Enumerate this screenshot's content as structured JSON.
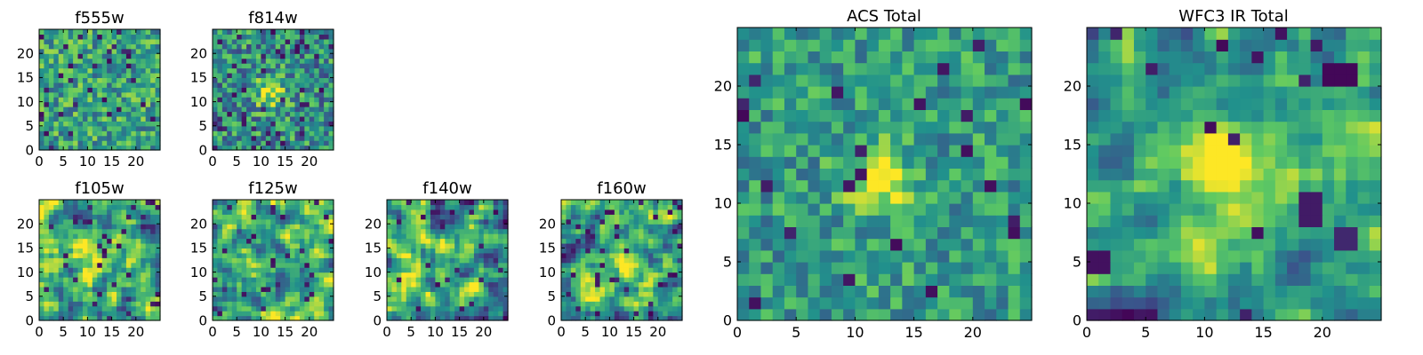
{
  "figure": {
    "background": "#ffffff",
    "frame_color": "#000000"
  },
  "colormap": {
    "name": "viridis",
    "stops": [
      "#440154",
      "#3b528b",
      "#21918c",
      "#5ec962",
      "#fde725"
    ]
  },
  "chart_data": [
    {
      "id": "f555w",
      "type": "heatmap",
      "title": "f555w",
      "grid_size": 25,
      "size_class": "small",
      "xticks": [
        0,
        5,
        10,
        15,
        20
      ],
      "yticks": [
        0,
        5,
        10,
        15,
        20
      ],
      "xlim": [
        0,
        25
      ],
      "ylim": [
        0,
        25
      ],
      "seed": 11,
      "noise": 0.55,
      "smooth": 0,
      "base": 0.58,
      "dark_frac": 0.06,
      "blob": null,
      "dark_patches": []
    },
    {
      "id": "f814w",
      "type": "heatmap",
      "title": "f814w",
      "grid_size": 25,
      "size_class": "small",
      "xticks": [
        0,
        5,
        10,
        15,
        20
      ],
      "yticks": [
        0,
        5,
        10,
        15,
        20
      ],
      "xlim": [
        0,
        25
      ],
      "ylim": [
        0,
        25
      ],
      "seed": 23,
      "noise": 0.6,
      "smooth": 0,
      "base": 0.5,
      "dark_frac": 0.07,
      "blob": {
        "cx": 12,
        "cy": 12,
        "sigma": 2.2,
        "amp": 0.45
      },
      "dark_patches": []
    },
    {
      "id": "f105w",
      "type": "heatmap",
      "title": "f105w",
      "grid_size": 25,
      "size_class": "small",
      "xticks": [
        0,
        5,
        10,
        15,
        20
      ],
      "yticks": [
        0,
        5,
        10,
        15,
        20
      ],
      "xlim": [
        0,
        25
      ],
      "ylim": [
        0,
        25
      ],
      "seed": 37,
      "noise": 0.9,
      "smooth": 1,
      "base": 0.6,
      "dark_frac": 0.05,
      "blob": {
        "cx": 12,
        "cy": 12,
        "sigma": 3.0,
        "amp": 0.3
      },
      "dark_patches": []
    },
    {
      "id": "f125w",
      "type": "heatmap",
      "title": "f125w",
      "grid_size": 25,
      "size_class": "small",
      "xticks": [
        0,
        5,
        10,
        15,
        20
      ],
      "yticks": [
        0,
        5,
        10,
        15,
        20
      ],
      "xlim": [
        0,
        25
      ],
      "ylim": [
        0,
        25
      ],
      "seed": 41,
      "noise": 0.9,
      "smooth": 1,
      "base": 0.62,
      "dark_frac": 0.05,
      "blob": null,
      "dark_patches": []
    },
    {
      "id": "f140w",
      "type": "heatmap",
      "title": "f140w",
      "grid_size": 25,
      "size_class": "small",
      "xticks": [
        0,
        5,
        10,
        15,
        20
      ],
      "yticks": [
        0,
        5,
        10,
        15,
        20
      ],
      "xlim": [
        0,
        25
      ],
      "ylim": [
        0,
        25
      ],
      "seed": 53,
      "noise": 0.9,
      "smooth": 1,
      "base": 0.6,
      "dark_frac": 0.04,
      "blob": null,
      "dark_patches": []
    },
    {
      "id": "f160w",
      "type": "heatmap",
      "title": "f160w",
      "grid_size": 25,
      "size_class": "small",
      "xticks": [
        0,
        5,
        10,
        15,
        20
      ],
      "yticks": [
        0,
        5,
        10,
        15,
        20
      ],
      "xlim": [
        0,
        25
      ],
      "ylim": [
        0,
        25
      ],
      "seed": 67,
      "noise": 0.9,
      "smooth": 1,
      "base": 0.6,
      "dark_frac": 0.04,
      "blob": {
        "cx": 12,
        "cy": 12,
        "sigma": 3.0,
        "amp": 0.25
      },
      "dark_patches": []
    },
    {
      "id": "acs-total",
      "type": "heatmap",
      "title": "ACS Total",
      "grid_size": 25,
      "size_class": "big",
      "xticks": [
        0,
        5,
        10,
        15,
        20
      ],
      "yticks": [
        0,
        5,
        10,
        15,
        20
      ],
      "xlim": [
        0,
        25
      ],
      "ylim": [
        0,
        25
      ],
      "seed": 79,
      "noise": 0.45,
      "smooth": 0,
      "base": 0.55,
      "dark_frac": 0.05,
      "blob": {
        "cx": 12,
        "cy": 12,
        "sigma": 1.8,
        "amp": 0.55
      },
      "dark_patches": []
    },
    {
      "id": "wfc3-ir-total",
      "type": "heatmap",
      "title": "WFC3 IR Total",
      "grid_size": 25,
      "size_class": "big",
      "xticks": [
        0,
        5,
        10,
        15,
        20
      ],
      "yticks": [
        0,
        5,
        10,
        15,
        20
      ],
      "xlim": [
        0,
        25
      ],
      "ylim": [
        0,
        25
      ],
      "seed": 97,
      "noise": 0.6,
      "smooth": 1,
      "base": 0.55,
      "dark_frac": 0.02,
      "blob": {
        "cx": 12,
        "cy": 13,
        "sigma": 2.6,
        "amp": 0.5
      },
      "dark_patches": [
        {
          "x": 20,
          "y": 20,
          "w": 3,
          "h": 2,
          "v": 0.02
        },
        {
          "x": 0,
          "y": 4,
          "w": 2,
          "h": 2,
          "v": 0.05
        },
        {
          "x": 18,
          "y": 8,
          "w": 2,
          "h": 3,
          "v": 0.08
        },
        {
          "x": 21,
          "y": 6,
          "w": 2,
          "h": 2,
          "v": 0.12
        }
      ]
    }
  ]
}
